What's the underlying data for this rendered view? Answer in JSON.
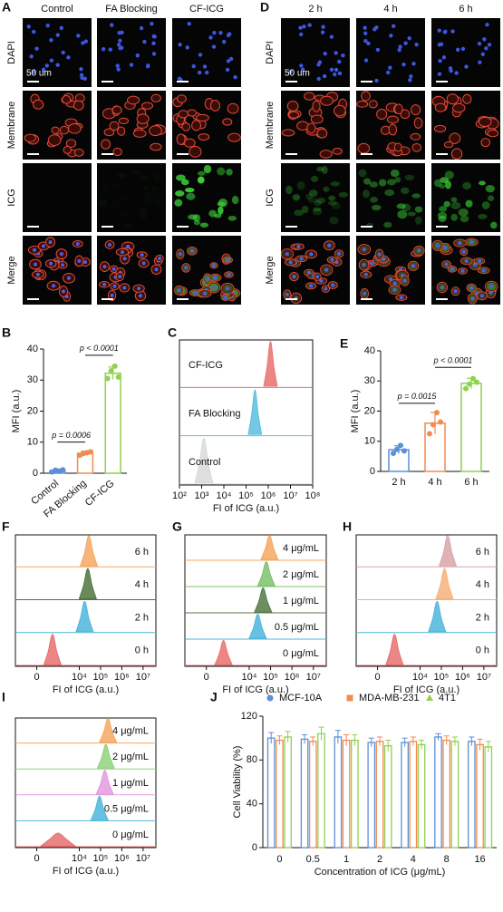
{
  "microscopy": [
    {
      "panel": "A",
      "columns": [
        "Control",
        "FA Blocking",
        "CF-ICG"
      ],
      "rows": [
        "DAPI",
        "Membrane",
        "ICG",
        "Merge"
      ],
      "scale_bar": "50 um"
    },
    {
      "panel": "D",
      "columns": [
        "2 h",
        "4 h",
        "6 h"
      ],
      "rows": [
        "DAPI",
        "Membrane",
        "ICG",
        "Merge"
      ],
      "scale_bar": "50 um"
    }
  ],
  "chart_data": [
    {
      "type": "bar",
      "panel": "B",
      "ylabel": "MFI (a.u.)",
      "categories": [
        "Control",
        "FA Blocking",
        "CF-ICG"
      ],
      "values": [
        0.8,
        6.4,
        32.2
      ],
      "errors": [
        0.4,
        0.7,
        2.0
      ],
      "points": [
        [
          0.4,
          1.0,
          0.7,
          1.1
        ],
        [
          5.8,
          6.3,
          6.6,
          6.9
        ],
        [
          30.5,
          33.0,
          34.5,
          31.0
        ]
      ],
      "colors": [
        "#5b8fd6",
        "#f28b4f",
        "#8fd14f"
      ],
      "ylim": [
        0,
        40
      ],
      "yticks": [
        0,
        10,
        20,
        30,
        40
      ],
      "annotations": [
        "p = 0.0006",
        "p < 0.0001"
      ]
    },
    {
      "type": "ridgeline",
      "panel": "C",
      "xlabel": "FI of ICG (a.u.)",
      "xscale": "log",
      "xlim": [
        100,
        100000000
      ],
      "xticks": [
        {
          "value": 100,
          "label": "10²"
        },
        {
          "value": 1000,
          "label": "10³"
        },
        {
          "value": 10000,
          "label": "10⁴"
        },
        {
          "value": 100000,
          "label": "10⁵"
        },
        {
          "value": 1000000,
          "label": "10⁶"
        },
        {
          "value": 10000000,
          "label": "10⁷"
        },
        {
          "value": 100000000,
          "label": "10⁸"
        }
      ],
      "series": [
        {
          "name": "Control",
          "color": "#d9d9d9",
          "x": [
            501,
            794,
            1259,
            1995,
            3162
          ],
          "values": [
            0.03,
            0.45,
            1,
            0.45,
            0.03
          ]
        },
        {
          "name": "FA Blocking",
          "color": "#5bbfe0",
          "x": [
            125893,
            177828,
            251189,
            354813,
            501187
          ],
          "values": [
            0.03,
            0.45,
            1,
            0.45,
            0.03
          ]
        },
        {
          "name": "CF-ICG",
          "color": "#e8716f",
          "x": [
            630957,
            891251,
            1258925,
            1778279,
            2511886
          ],
          "values": [
            0.03,
            0.45,
            1,
            0.45,
            0.03
          ]
        }
      ]
    },
    {
      "type": "bar",
      "panel": "E",
      "ylabel": "MFI (a.u.)",
      "categories": [
        "2 h",
        "4 h",
        "6 h"
      ],
      "values": [
        7.2,
        16.0,
        29.2
      ],
      "errors": [
        1.3,
        3.6,
        1.7
      ],
      "points": [
        [
          6.0,
          7.3,
          8.6,
          6.8
        ],
        [
          12.5,
          15.5,
          19.5,
          16.4
        ],
        [
          27.5,
          29.0,
          30.8,
          29.6
        ]
      ],
      "colors": [
        "#5b8fd6",
        "#f28b4f",
        "#8fd14f"
      ],
      "ylim": [
        0,
        40
      ],
      "yticks": [
        0,
        10,
        20,
        30,
        40
      ],
      "annotations": [
        "p = 0.0015",
        "p < 0.0001"
      ]
    },
    {
      "type": "ridgeline",
      "panel": "F",
      "xlabel": "FI of ICG (a.u.)",
      "xscale": "asinh",
      "xlim": [
        -1000,
        40000000
      ],
      "xticks": [
        0,
        {
          "value": 10000,
          "label": "10⁴"
        },
        {
          "value": 100000,
          "label": "10⁵"
        },
        {
          "value": 1000000,
          "label": "10⁶"
        },
        {
          "value": 10000000,
          "label": "10⁷"
        }
      ],
      "series": [
        {
          "name": "0 h",
          "color": "#e8716f",
          "x": [
            173,
            318,
            532,
            858,
            1372
          ],
          "values": [
            0.03,
            0.45,
            1,
            0.45,
            0.03
          ]
        },
        {
          "name": "2 h",
          "color": "#4fb6dc",
          "x": [
            7079,
            11220,
            17783,
            28184,
            44668
          ],
          "values": [
            0.03,
            0.45,
            1,
            0.45,
            0.03
          ]
        },
        {
          "name": "4 h",
          "color": "#50753f",
          "x": [
            10000,
            15849,
            25119,
            39811,
            63096
          ],
          "values": [
            0.03,
            0.45,
            1,
            0.45,
            0.03
          ]
        },
        {
          "name": "6 h",
          "color": "#f6a862",
          "x": [
            11220,
            17783,
            28184,
            44668,
            70795
          ],
          "values": [
            0.03,
            0.45,
            1,
            0.45,
            0.03
          ]
        }
      ]
    },
    {
      "type": "ridgeline",
      "panel": "G",
      "xlabel": "FI of ICG (a.u.)",
      "xscale": "asinh",
      "xlim": [
        -1000,
        40000000
      ],
      "xticks": [
        0,
        {
          "value": 10000,
          "label": "10⁴"
        },
        {
          "value": 100000,
          "label": "10⁵"
        },
        {
          "value": 1000000,
          "label": "10⁶"
        },
        {
          "value": 10000000,
          "label": "10⁷"
        }
      ],
      "series": [
        {
          "name": "0 μg/mL",
          "color": "#e8716f",
          "x": [
            211,
            372,
            614,
            990,
            1578
          ],
          "values": [
            0.03,
            0.45,
            1,
            0.45,
            0.03
          ]
        },
        {
          "name": "0.5 μg/mL",
          "color": "#4fb6dc",
          "x": [
            10000,
            15849,
            25119,
            39811,
            63096
          ],
          "values": [
            0.03,
            0.45,
            1,
            0.45,
            0.03
          ]
        },
        {
          "name": "1 μg/mL",
          "color": "#557a45",
          "x": [
            17783,
            28184,
            44668,
            70795,
            112202
          ],
          "values": [
            0.03,
            0.45,
            1,
            0.45,
            0.03
          ]
        },
        {
          "name": "2 μg/mL",
          "color": "#7cc26b",
          "x": [
            25119,
            39811,
            63096,
            100000,
            158489
          ],
          "values": [
            0.03,
            0.45,
            1,
            0.45,
            0.03
          ]
        },
        {
          "name": "4 μg/mL",
          "color": "#f6a862",
          "x": [
            35481,
            56234,
            89125,
            141254,
            223872
          ],
          "values": [
            0.03,
            0.45,
            1,
            0.45,
            0.03
          ]
        }
      ]
    },
    {
      "type": "ridgeline",
      "panel": "H",
      "xlabel": "FI of ICG (a.u.)",
      "xscale": "asinh",
      "xlim": [
        -1000,
        40000000
      ],
      "xticks": [
        0,
        {
          "value": 10000,
          "label": "10⁴"
        },
        {
          "value": 100000,
          "label": "10⁵"
        },
        {
          "value": 1000000,
          "label": "10⁶"
        },
        {
          "value": 10000000,
          "label": "10⁷"
        }
      ],
      "series": [
        {
          "name": "0 h",
          "color": "#e8716f",
          "x": [
            211,
            372,
            614,
            990,
            1578
          ],
          "values": [
            0.03,
            0.45,
            1,
            0.45,
            0.03
          ]
        },
        {
          "name": "2 h",
          "color": "#4fb6dc",
          "x": [
            25119,
            39811,
            63096,
            100000,
            158489
          ],
          "values": [
            0.03,
            0.45,
            1,
            0.45,
            0.03
          ]
        },
        {
          "name": "4 h",
          "color": "#f6b27a",
          "x": [
            56234,
            89125,
            141254,
            223872,
            354813
          ],
          "values": [
            0.03,
            0.45,
            1,
            0.45,
            0.03
          ]
        },
        {
          "name": "6 h",
          "color": "#d9a6a8",
          "x": [
            79433,
            125893,
            199526,
            316228,
            501187
          ],
          "values": [
            0.03,
            0.45,
            1,
            0.45,
            0.03
          ]
        }
      ]
    },
    {
      "type": "ridgeline",
      "panel": "I",
      "xlabel": "FI of ICG (a.u.)",
      "xscale": "asinh",
      "xlim": [
        -1000,
        40000000
      ],
      "xticks": [
        0,
        {
          "value": 10000,
          "label": "10⁴"
        },
        {
          "value": 100000,
          "label": "10⁵"
        },
        {
          "value": 1000000,
          "label": "10⁶"
        },
        {
          "value": 10000000,
          "label": "10⁷"
        }
      ],
      "series": [
        {
          "name": "0 μg/mL",
          "color": "#e8716f",
          "x": [
            95,
            372,
            990,
            2520,
            6300
          ],
          "values": [
            0.03,
            0.3,
            0.55,
            0.3,
            0.03
          ]
        },
        {
          "name": "0.5 μg/mL",
          "color": "#4fb6dc",
          "x": [
            35481,
            56234,
            89125,
            141254,
            223872
          ],
          "values": [
            0.03,
            0.45,
            1,
            0.45,
            0.03
          ]
        },
        {
          "name": "1 μg/mL",
          "color": "#e49adf",
          "x": [
            63096,
            100000,
            158489,
            251189,
            398107
          ],
          "values": [
            0.03,
            0.45,
            1,
            0.45,
            0.03
          ]
        },
        {
          "name": "2 μg/mL",
          "color": "#8fd27e",
          "x": [
            70795,
            112202,
            177828,
            281838,
            446684
          ],
          "values": [
            0.03,
            0.45,
            1,
            0.45,
            0.03
          ]
        },
        {
          "name": "4 μg/mL",
          "color": "#f6a862",
          "x": [
            89125,
            141254,
            223872,
            354813,
            562341
          ],
          "values": [
            0.03,
            0.45,
            1,
            0.45,
            0.03
          ]
        }
      ]
    },
    {
      "type": "grouped_bar",
      "panel": "J",
      "ylabel": "Cell Viability (%)",
      "xlabel": "Concentration of ICG (μg/mL)",
      "categories": [
        "0",
        "0.5",
        "1",
        "2",
        "4",
        "8",
        "16"
      ],
      "ylim": [
        0,
        120
      ],
      "yticks": [
        0,
        40,
        80,
        120
      ],
      "series": [
        {
          "name": "MCF-10A",
          "color": "#5b8fd6",
          "values": [
            100,
            99,
            101,
            96,
            96,
            101,
            97
          ],
          "errors": [
            5,
            4,
            6,
            4,
            4,
            3,
            4
          ]
        },
        {
          "name": "MDA-MB-231",
          "color": "#f28b4f",
          "values": [
            98,
            97,
            98,
            97,
            97,
            98,
            94
          ],
          "errors": [
            4,
            4,
            5,
            4,
            4,
            4,
            5
          ]
        },
        {
          "name": "4T1",
          "color": "#8fd14f",
          "values": [
            101,
            104,
            98,
            93,
            94,
            97,
            92
          ],
          "errors": [
            5,
            6,
            5,
            5,
            4,
            4,
            5
          ]
        }
      ]
    }
  ]
}
